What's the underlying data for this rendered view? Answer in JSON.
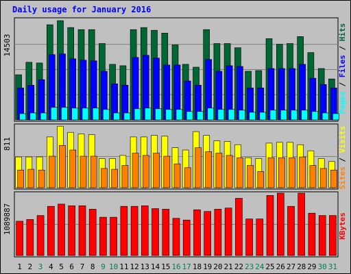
{
  "chart_data": {
    "type": "bar",
    "title": "Daily usage for January 2016",
    "days": [
      "1",
      "2",
      "3",
      "4",
      "5",
      "6",
      "7",
      "8",
      "9",
      "10",
      "11",
      "12",
      "13",
      "14",
      "15",
      "16",
      "17",
      "18",
      "19",
      "20",
      "21",
      "22",
      "23",
      "24",
      "25",
      "26",
      "27",
      "28",
      "29",
      "30",
      "31"
    ],
    "weekend_days": [
      "3",
      "9",
      "10",
      "16",
      "17",
      "23",
      "24",
      "30",
      "31"
    ],
    "panels": [
      {
        "name": "hits-files-pages",
        "max_label": "14503",
        "max_value": 14503,
        "legend": [
          "Pages",
          "Files",
          "Hits"
        ],
        "series": [
          {
            "name": "Hits",
            "color": "#006633",
            "values": [
              6500,
              8300,
              8200,
              13700,
              14300,
              13300,
              13000,
              13000,
              11000,
              8000,
              7800,
              13000,
              13300,
              12900,
              12500,
              10800,
              8000,
              7600,
              13000,
              11000,
              11000,
              10400,
              7000,
              7100,
              11700,
              10900,
              11000,
              12000,
              9700,
              7400,
              5900
            ]
          },
          {
            "name": "Files",
            "color": "#0000ff",
            "values": [
              4600,
              5000,
              5800,
              9400,
              9500,
              8800,
              8600,
              8500,
              7000,
              5200,
              5000,
              9000,
              9300,
              8900,
              7900,
              7900,
              5600,
              5000,
              8700,
              7000,
              7800,
              7700,
              4600,
              4600,
              7400,
              7400,
              7400,
              8000,
              6000,
              5100,
              4600
            ]
          },
          {
            "name": "Pages",
            "color": "#00ffff",
            "values": [
              900,
              1000,
              1000,
              1800,
              1800,
              1700,
              1700,
              1700,
              1500,
              1000,
              1000,
              1600,
              1700,
              1600,
              1500,
              1500,
              1200,
              1200,
              1700,
              1500,
              1500,
              1400,
              1100,
              1100,
              1400,
              1400,
              1400,
              1400,
              1200,
              1000,
              900
            ]
          }
        ]
      },
      {
        "name": "visits-sites",
        "max_label": "811",
        "max_value": 811,
        "legend": [
          "Sites",
          "Visits"
        ],
        "series": [
          {
            "name": "Visits",
            "color": "#ffff00",
            "values": [
              400,
              400,
              400,
              660,
              800,
              720,
              700,
              690,
              380,
              380,
              420,
              660,
              660,
              680,
              670,
              520,
              490,
              730,
              680,
              610,
              600,
              560,
              390,
              380,
              580,
              590,
              590,
              560,
              480,
              380,
              340
            ]
          },
          {
            "name": "Sites",
            "color": "#ff8000",
            "values": [
              230,
              240,
              230,
              410,
              550,
              490,
              410,
              410,
              250,
              240,
              290,
              450,
              420,
              450,
              410,
              310,
              260,
              520,
              470,
              450,
              420,
              390,
              290,
              210,
              390,
              390,
              390,
              400,
              290,
              250,
              230
            ]
          }
        ]
      },
      {
        "name": "kbytes",
        "max_label": "1089887",
        "max_value": 1089887,
        "legend": [
          "KBytes"
        ],
        "series": [
          {
            "name": "KBytes",
            "color": "#ff0000",
            "values": [
              600000,
              630000,
              700000,
              860000,
              900000,
              870000,
              870000,
              810000,
              670000,
              670000,
              860000,
              860000,
              870000,
              820000,
              810000,
              650000,
              620000,
              800000,
              770000,
              810000,
              830000,
              1000000,
              640000,
              640000,
              1050000,
              1090000,
              860000,
              1090000,
              740000,
              700000,
              700000
            ]
          }
        ]
      }
    ]
  }
}
